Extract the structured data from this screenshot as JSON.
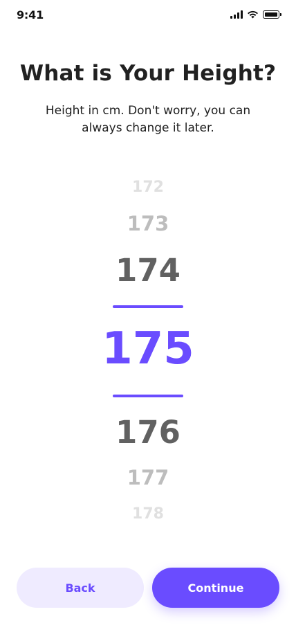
{
  "status_bar": {
    "time": "9:41",
    "icons": [
      "cellular-signal-icon",
      "wifi-icon",
      "battery-icon"
    ],
    "battery_level": 1.0
  },
  "header": {
    "title": "What is Your Height?",
    "subtitle": "Height in cm. Don't worry, you can always change it later."
  },
  "picker": {
    "values": [
      "172",
      "173",
      "174",
      "175",
      "176",
      "177",
      "178"
    ],
    "selected": "175",
    "accent_color": "#6a4cff"
  },
  "buttons": {
    "back_label": "Back",
    "continue_label": "Continue"
  },
  "colors": {
    "accent": "#6a4cff",
    "accent_light": "#efebff",
    "text": "#212121"
  }
}
